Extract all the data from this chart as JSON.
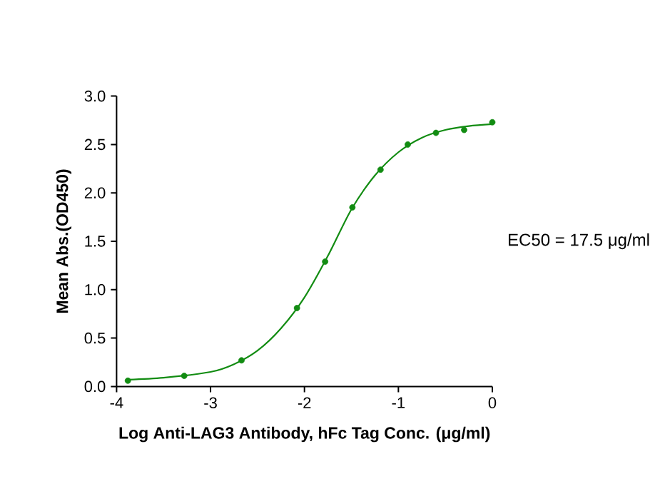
{
  "chart_data": {
    "type": "scatter",
    "xlabel": "Log Anti-LAG3 Antibody, hFc Tag Conc. (μg/ml)",
    "ylabel": "Mean Abs.(OD450)",
    "annotations": [
      "EC50 = 17.5 μg/ml"
    ],
    "x": [
      -3.88,
      -3.28,
      -2.67,
      -2.08,
      -1.78,
      -1.49,
      -1.19,
      -0.9,
      -0.6,
      -0.3,
      0.0
    ],
    "series": [
      {
        "color": "#128c12",
        "marker": "circle",
        "values": [
          0.06,
          0.11,
          0.27,
          0.81,
          1.29,
          1.85,
          2.24,
          2.5,
          2.62,
          2.65,
          2.73
        ]
      },
      {
        "type": "line",
        "color": "#128c12",
        "marker": "none",
        "line_style": "solid",
        "x": [
          -3.88,
          -3.5,
          -3.0,
          -2.75,
          -2.5,
          -2.25,
          -2.0,
          -1.75,
          -1.5,
          -1.25,
          -1.0,
          -0.75,
          -0.5,
          -0.25,
          0.0
        ],
        "values": [
          0.07,
          0.09,
          0.15,
          0.23,
          0.37,
          0.6,
          0.92,
          1.35,
          1.83,
          2.18,
          2.42,
          2.57,
          2.65,
          2.69,
          2.71
        ]
      }
    ],
    "xlim": [
      -4,
      0
    ],
    "xticks": [
      -4,
      -3,
      -2,
      -1,
      0
    ],
    "ylim": [
      0,
      3
    ],
    "yticks": [
      {
        "value": 0,
        "label": "0.0"
      },
      {
        "value": 0.5,
        "label": "0.5"
      },
      {
        "value": 1,
        "label": "1.0"
      },
      {
        "value": 1.5,
        "label": "1.5"
      },
      {
        "value": 2,
        "label": "2.0"
      },
      {
        "value": 2.5,
        "label": "2.5"
      },
      {
        "value": 3,
        "label": "3.0"
      }
    ],
    "grid": false
  }
}
